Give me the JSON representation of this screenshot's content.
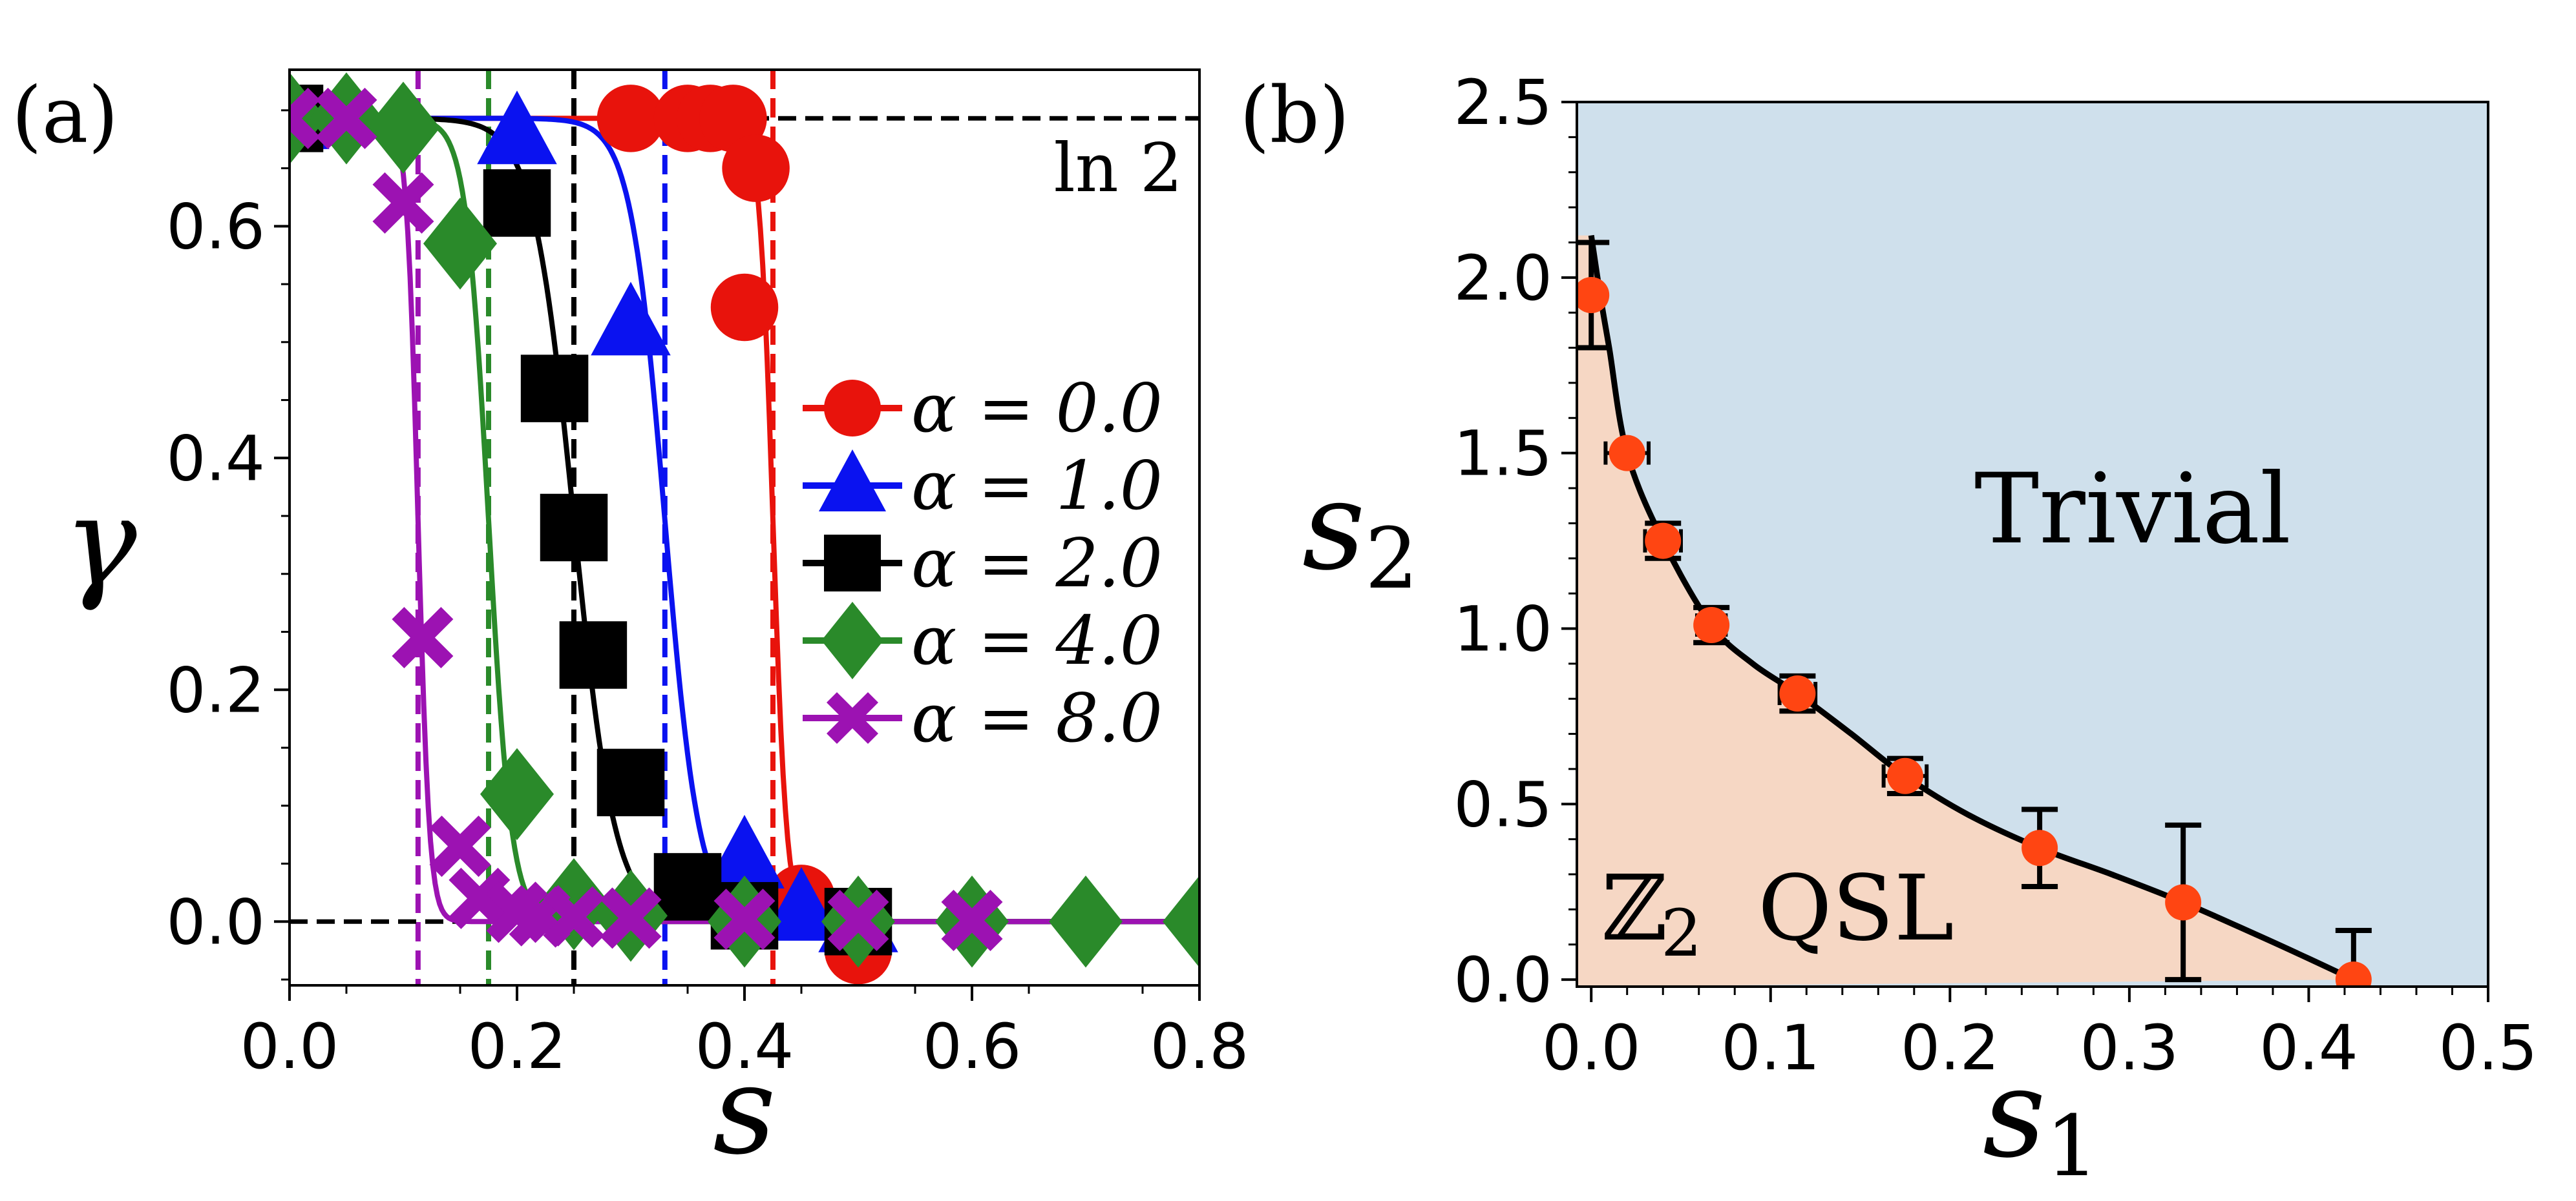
{
  "colors": {
    "alpha0": "#e8130c",
    "alpha1": "#0a12f0",
    "alpha2": "#000000",
    "alpha4": "#2a8a2a",
    "alpha8": "#9c12b2",
    "trivial_region": "#cfe0ec",
    "qsl_region": "#f6d7c4",
    "phase_points": "#ff4512"
  },
  "chart_data": [
    {
      "panel": "(a)",
      "type": "line",
      "xlabel": "s",
      "ylabel": "γ",
      "xlim": [
        0.0,
        0.8
      ],
      "ylim": [
        -0.055,
        0.735
      ],
      "xticks": [
        "0.0",
        "0.2",
        "0.4",
        "0.6",
        "0.8"
      ],
      "yticks": [
        "0.0",
        "0.2",
        "0.4",
        "0.6"
      ],
      "ln2_label": "ln 2",
      "hlines": [
        0.6931,
        0.0
      ],
      "series": [
        {
          "name": "α = 0.0",
          "key": "alpha0",
          "marker": "circle",
          "sc": 0.425,
          "w": 0.006,
          "x": [
            0.0,
            0.3,
            0.35,
            0.37,
            0.39,
            0.4,
            0.41,
            0.45,
            0.5
          ],
          "y": [
            0.693,
            0.693,
            0.693,
            0.693,
            0.693,
            0.53,
            0.65,
            0.02,
            -0.025
          ]
        },
        {
          "name": "α = 1.0",
          "key": "alpha1",
          "marker": "triangle",
          "sc": 0.33,
          "w": 0.015,
          "x": [
            0.0,
            0.2,
            0.3,
            0.4,
            0.45,
            0.5
          ],
          "y": [
            0.693,
            0.68,
            0.515,
            0.055,
            0.01,
            0.0
          ]
        },
        {
          "name": "α = 2.0",
          "key": "alpha2",
          "marker": "square",
          "sc": 0.25,
          "w": 0.018,
          "x": [
            0.0,
            0.2,
            0.233,
            0.25,
            0.267,
            0.3,
            0.35,
            0.4,
            0.5
          ],
          "y": [
            0.693,
            0.62,
            0.46,
            0.34,
            0.23,
            0.12,
            0.03,
            0.005,
            0.0
          ]
        },
        {
          "name": "α = 4.0",
          "key": "alpha4",
          "marker": "diamond",
          "sc": 0.175,
          "w": 0.01,
          "x": [
            0.0,
            0.05,
            0.1,
            0.15,
            0.2,
            0.25,
            0.3,
            0.4,
            0.5,
            0.6,
            0.7,
            0.8
          ],
          "y": [
            0.693,
            0.693,
            0.685,
            0.585,
            0.11,
            0.015,
            0.005,
            0.0,
            0.0,
            0.0,
            0.0,
            0.0
          ]
        },
        {
          "name": "α = 8.0",
          "key": "alpha8",
          "marker": "cross",
          "sc": 0.113,
          "w": 0.005,
          "x": [
            0.0,
            0.05,
            0.1,
            0.117,
            0.15,
            0.167,
            0.2,
            0.22,
            0.25,
            0.3,
            0.4,
            0.5,
            0.6
          ],
          "y": [
            0.693,
            0.693,
            0.62,
            0.245,
            0.065,
            0.02,
            0.008,
            0.005,
            0.004,
            0.003,
            0.002,
            0.001,
            0.001
          ]
        }
      ]
    },
    {
      "panel": "(b)",
      "type": "scatter",
      "xlabel": "s1",
      "ylabel": "s2",
      "xlim": [
        -0.008,
        0.5
      ],
      "ylim": [
        -0.02,
        2.5
      ],
      "xticks": [
        "0.0",
        "0.1",
        "0.2",
        "0.3",
        "0.4",
        "0.5"
      ],
      "yticks": [
        "0.0",
        "0.5",
        "1.0",
        "1.5",
        "2.0",
        "2.5"
      ],
      "region_labels": {
        "trivial": "Trivial",
        "qsl_symbol": "ℤ",
        "qsl_subscript": "2",
        "qsl_text": "QSL"
      },
      "points": [
        {
          "x": 0.0,
          "y": 1.95,
          "yerr": 0.15,
          "xerr": 0.0
        },
        {
          "x": 0.02,
          "y": 1.5,
          "yerr": 0.0,
          "xerr": 0.012
        },
        {
          "x": 0.04,
          "y": 1.25,
          "yerr": 0.05,
          "xerr": 0.01
        },
        {
          "x": 0.067,
          "y": 1.01,
          "yerr": 0.05,
          "xerr": 0.008
        },
        {
          "x": 0.115,
          "y": 0.815,
          "yerr": 0.05,
          "xerr": 0.01
        },
        {
          "x": 0.175,
          "y": 0.58,
          "yerr": 0.05,
          "xerr": 0.012
        },
        {
          "x": 0.25,
          "y": 0.375,
          "yerr": 0.11,
          "xerr": 0.0
        },
        {
          "x": 0.33,
          "y": 0.22,
          "yerr": 0.22,
          "xerr": 0.0
        },
        {
          "x": 0.425,
          "y": 0.0,
          "yerr": 0.14,
          "xerr": 0.0
        }
      ],
      "boundary": {
        "x": [
          0.0,
          0.005,
          0.01,
          0.02,
          0.04,
          0.067,
          0.09,
          0.115,
          0.145,
          0.175,
          0.21,
          0.25,
          0.29,
          0.33,
          0.37,
          0.4,
          0.425
        ],
        "y": [
          2.12,
          1.95,
          1.8,
          1.5,
          1.25,
          1.01,
          0.9,
          0.815,
          0.7,
          0.58,
          0.47,
          0.375,
          0.3,
          0.22,
          0.13,
          0.06,
          0.0
        ]
      }
    }
  ]
}
